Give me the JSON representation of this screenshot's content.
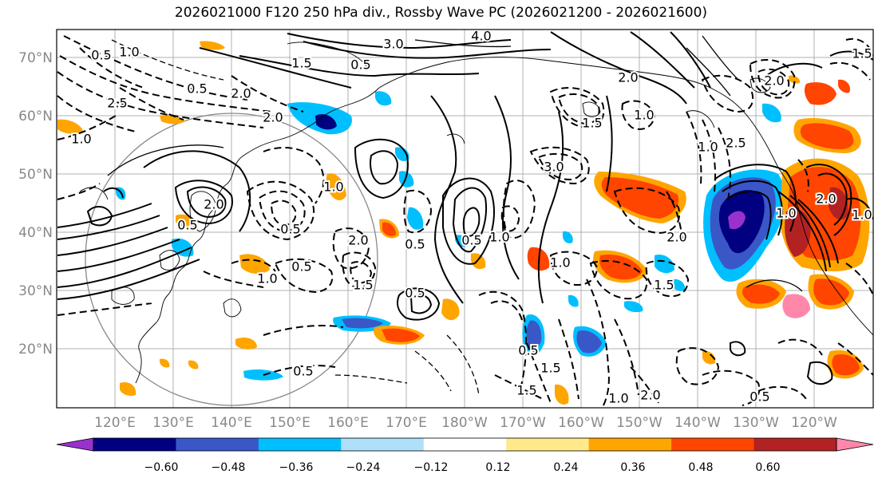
{
  "title": "2026021000 F120 250 hPa div., Rossby Wave PC (2026021200 - 2026021600)",
  "lat_labels": [
    "70°N",
    "60°N",
    "50°N",
    "40°N",
    "30°N",
    "20°N"
  ],
  "lon_labels": [
    "120°E",
    "130°E",
    "140°E",
    "150°E",
    "160°E",
    "170°E",
    "180°W",
    "170°W",
    "160°W",
    "150°W",
    "140°W",
    "130°W",
    "120°W"
  ],
  "colorbar": {
    "colors": [
      "#9932cc",
      "#000080",
      "#3a57c8",
      "#00bfff",
      "#aee0fa",
      "#ffffff",
      "#ffe98a",
      "#ffa500",
      "#ff4500",
      "#b22222",
      "#ff88aa"
    ],
    "labels": [
      "−0.60",
      "−0.48",
      "−0.36",
      "−0.24",
      "−0.12",
      "0.12",
      "0.24",
      "0.36",
      "0.48",
      "0.60"
    ]
  },
  "contour_labels": [
    "3.0",
    "4.0",
    "2.0",
    "0.5",
    "1.0",
    "1.5",
    "0.5",
    "2.0",
    "2.5",
    "1.0",
    "0.5",
    "2.0",
    "1.0",
    "0.5",
    "2.0",
    "0.5",
    "1.0",
    "1.5",
    "0.5",
    "0.5",
    "1.0",
    "0.5",
    "3.0",
    "1.0",
    "1.0",
    "1.5",
    "1.5",
    "2.0",
    "1.0",
    "2.5",
    "0.5",
    "1.5",
    "1.0",
    "2.0",
    "0.5",
    "1.5",
    "1.0",
    "2.0",
    "1.0",
    "2.0",
    "1.5",
    "0.5",
    "2.0",
    "0.5"
  ]
}
